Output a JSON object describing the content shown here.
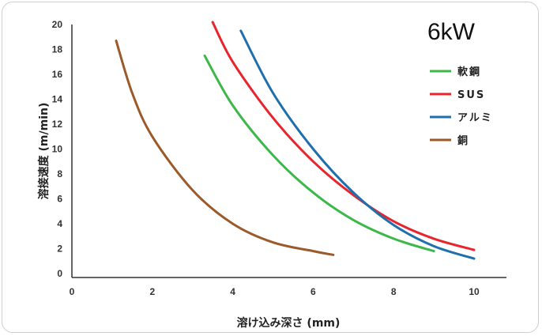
{
  "chart_data": {
    "type": "line",
    "title": "6kW",
    "xlabel": "溶け込み深さ (mm)",
    "ylabel": "溶接速度 (m/min)",
    "xlim": [
      0,
      10
    ],
    "ylim": [
      0,
      20
    ],
    "x_ticks": [
      "0",
      "2",
      "4",
      "6",
      "8",
      "10"
    ],
    "y_ticks": [
      "0",
      "2",
      "4",
      "6",
      "8",
      "10",
      "12",
      "14",
      "16",
      "18",
      "20"
    ],
    "grid": false,
    "legend_position": "top-right",
    "series": [
      {
        "name": "軟鋼",
        "color": "#3cb84a",
        "points": [
          [
            3.3,
            17.5
          ],
          [
            4.0,
            13.5
          ],
          [
            5.0,
            9.5
          ],
          [
            6.0,
            6.5
          ],
          [
            7.0,
            4.3
          ],
          [
            8.0,
            2.8
          ],
          [
            9.0,
            1.8
          ]
        ]
      },
      {
        "name": "SUS",
        "color": "#e8252d",
        "points": [
          [
            3.5,
            20.2
          ],
          [
            4.0,
            17.0
          ],
          [
            5.0,
            12.5
          ],
          [
            6.0,
            9.0
          ],
          [
            7.0,
            6.3
          ],
          [
            8.0,
            4.2
          ],
          [
            9.0,
            2.8
          ],
          [
            10.0,
            1.9
          ]
        ]
      },
      {
        "name": "アルミ",
        "color": "#1f6fad",
        "points": [
          [
            4.2,
            19.5
          ],
          [
            5.0,
            14.5
          ],
          [
            6.0,
            10.0
          ],
          [
            7.0,
            6.5
          ],
          [
            8.0,
            3.9
          ],
          [
            9.0,
            2.2
          ],
          [
            10.0,
            1.2
          ]
        ]
      },
      {
        "name": "銅",
        "color": "#9b5a2a",
        "points": [
          [
            1.1,
            18.7
          ],
          [
            1.5,
            14.5
          ],
          [
            2.0,
            11.0
          ],
          [
            3.0,
            6.7
          ],
          [
            4.0,
            4.0
          ],
          [
            5.0,
            2.5
          ],
          [
            6.0,
            1.8
          ],
          [
            6.5,
            1.5
          ]
        ]
      }
    ]
  }
}
